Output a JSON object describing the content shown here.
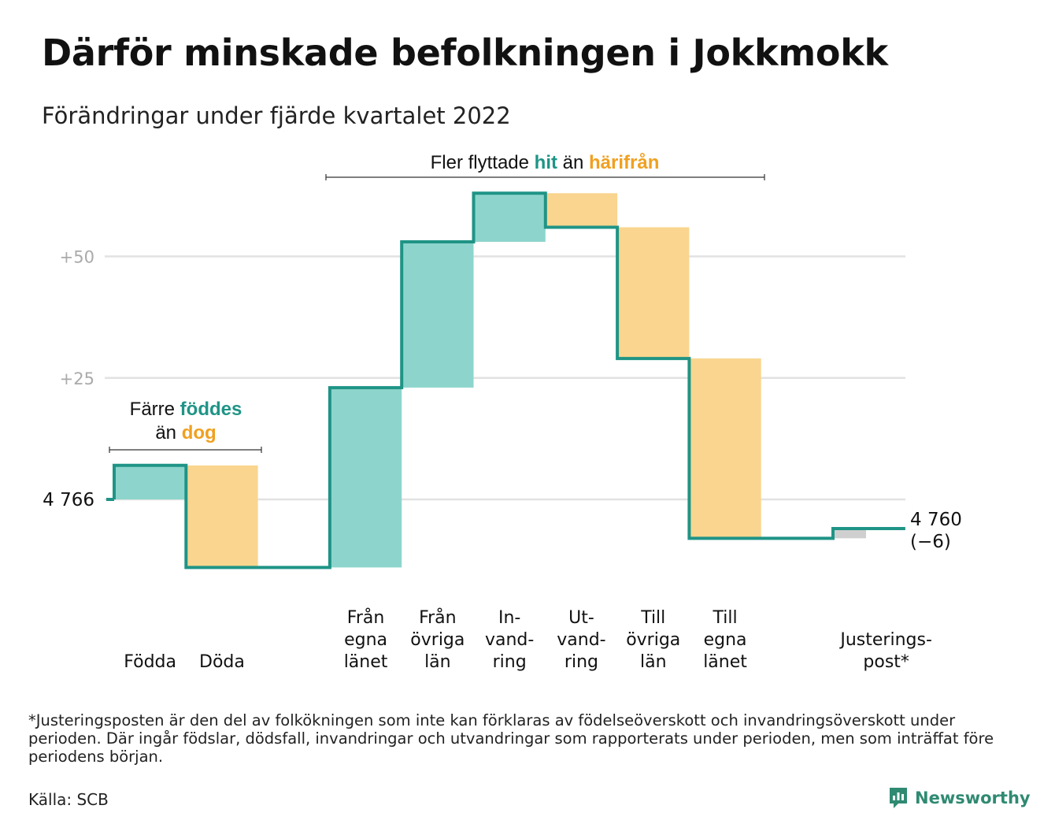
{
  "title": "Därför minskade befolkningen i Jokkmokk",
  "subtitle": "Förändringar under fjärde kvartalet 2022",
  "colors": {
    "inflow": "#8dd5cc",
    "outflow": "#f9d58f",
    "adjustment": "#cfcfcf",
    "line": "#1f9486",
    "highlight_teal": "#1f9486",
    "highlight_orange": "#f0a020",
    "gridline": "#e2e2e2",
    "brand": "#2f8a72"
  },
  "annotations": {
    "left": {
      "line1_pre": "Färre ",
      "line1_hl": "föddes",
      "line2_pre": "än ",
      "line2_hl": "dog"
    },
    "top": {
      "pre": "Fler flyttade ",
      "hl1": "hit",
      "mid": " än ",
      "hl2": "härifrån"
    }
  },
  "chart_data": {
    "type": "waterfall",
    "start_label": "4 766",
    "end_label": "4 760",
    "end_change_label": "(−6)",
    "y_ticks": [
      {
        "value": 25,
        "label": "+25"
      },
      {
        "value": 50,
        "label": "+50"
      }
    ],
    "ylim": [
      -15,
      63
    ],
    "steps": [
      {
        "label": [
          "Födda"
        ],
        "value": 7,
        "kind": "in"
      },
      {
        "label": [
          "Döda"
        ],
        "value": -21,
        "kind": "out"
      },
      {
        "label": [],
        "value": 0,
        "kind": "gap"
      },
      {
        "label": [
          "Från",
          "egna",
          "länet"
        ],
        "value": 37,
        "kind": "in"
      },
      {
        "label": [
          "Från",
          "övriga",
          "län"
        ],
        "value": 30,
        "kind": "in"
      },
      {
        "label": [
          "In-",
          "vand-",
          "ring"
        ],
        "value": 10,
        "kind": "in"
      },
      {
        "label": [
          "Ut-",
          "vand-",
          "ring"
        ],
        "value": -7,
        "kind": "out"
      },
      {
        "label": [
          "Till",
          "övriga",
          "län"
        ],
        "value": -27,
        "kind": "out"
      },
      {
        "label": [
          "Till",
          "egna",
          "länet"
        ],
        "value": -37,
        "kind": "out"
      },
      {
        "label": [],
        "value": 0,
        "kind": "gap"
      },
      {
        "label": [
          "Justerings-",
          "post*"
        ],
        "value": 2,
        "kind": "adj"
      }
    ]
  },
  "footnote": "*Justeringsposten är den del av folkökningen som inte kan förklaras av födelseöverskott och invandringsöverskott under perioden. Där ingår födslar, dödsfall, invandringar och utvandringar som rapporterats under perioden, men som inträffat före periodens början.",
  "source": "Källa: SCB",
  "brand": {
    "name": "Newsworthy",
    "icon": "newsworthy-logo-icon"
  }
}
